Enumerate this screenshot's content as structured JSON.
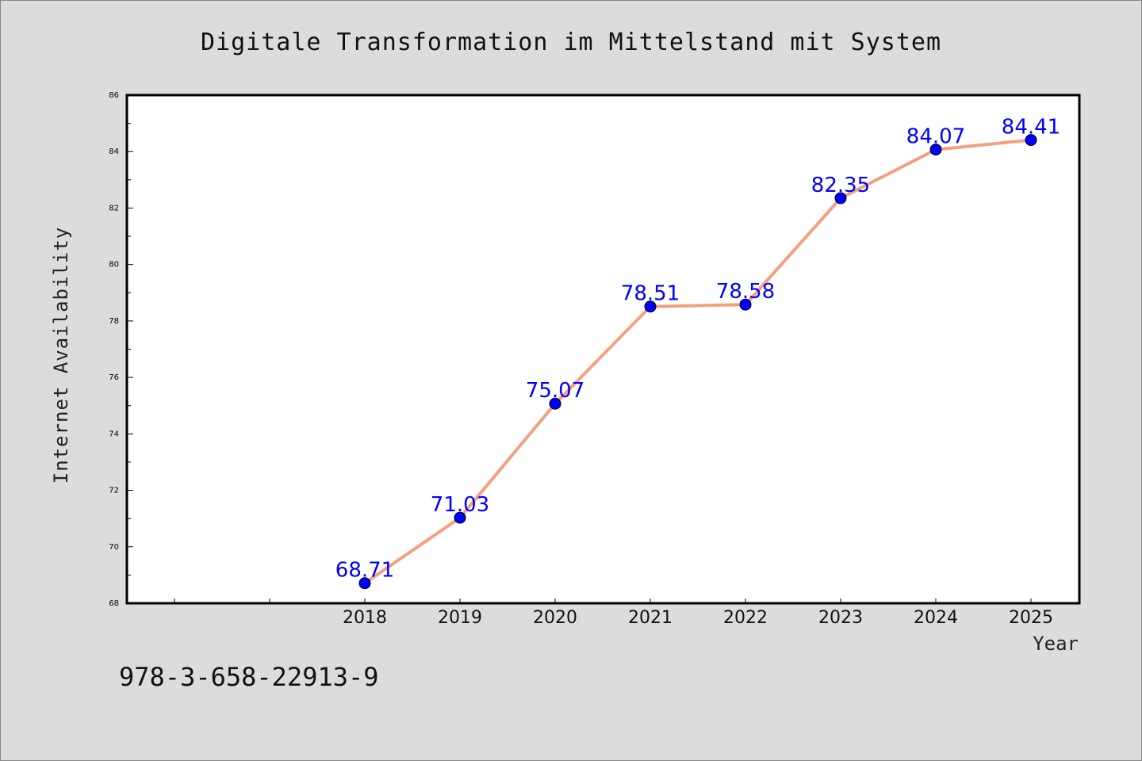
{
  "chart_data": {
    "type": "line",
    "title": "Digitale Transformation im Mittelstand mit System",
    "xlabel": "Year",
    "ylabel": "Internet Availability",
    "x": [
      "2018",
      "2019",
      "2020",
      "2021",
      "2022",
      "2023",
      "2024",
      "2025"
    ],
    "values": [
      68.71,
      71.03,
      75.07,
      78.51,
      78.58,
      82.35,
      84.07,
      84.41
    ],
    "data_labels": [
      "68.71",
      "71.03",
      "75.07",
      "78.51",
      "78.58",
      "82.35",
      "84.07",
      "84.41"
    ],
    "yticks": [
      "68",
      "70",
      "72",
      "74",
      "76",
      "78",
      "80",
      "82",
      "84",
      "86"
    ],
    "ylim": [
      68,
      86
    ],
    "grid": false,
    "legend": "none",
    "colors": {
      "line": "#f4a07f",
      "marker": "#0000ff",
      "data_label": "#0000ff",
      "background": "#dcdcdc",
      "plot_background": "#ffffff"
    }
  },
  "footer": {
    "isbn": "978-3-658-22913-9"
  }
}
